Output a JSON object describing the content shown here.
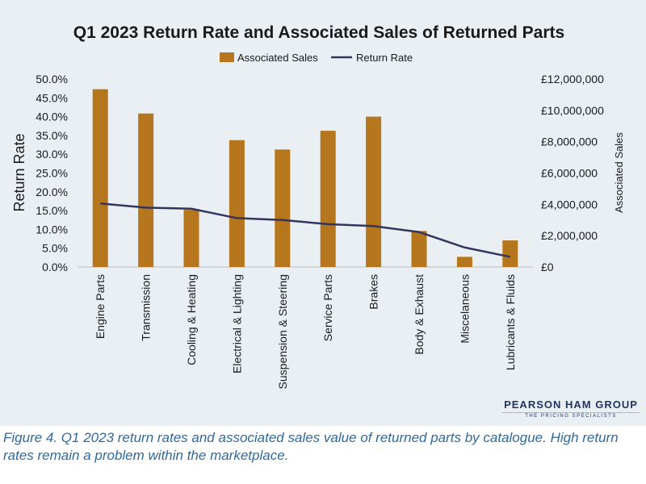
{
  "chart_data": {
    "type": "bar",
    "title": "Q1 2023 Return Rate and Associated Sales of Returned Parts",
    "categories": [
      "Engine Parts",
      "Transmission",
      "Cooling & Heating",
      "Electrical & Lighting",
      "Suspension & Steering",
      "Service Parts",
      "Brakes",
      "Body & Exhaust",
      "Miscelaneous",
      "Lubricants & Fluids"
    ],
    "series": [
      {
        "name": "Associated Sales",
        "type": "bar",
        "axis": "right",
        "color": "#b5761e",
        "values": [
          11350000,
          9800000,
          3650000,
          8100000,
          7500000,
          8700000,
          9600000,
          2300000,
          650000,
          1700000
        ]
      },
      {
        "name": "Return Rate",
        "type": "line",
        "axis": "left",
        "color": "#33365c",
        "values": [
          0.169,
          0.158,
          0.155,
          0.13,
          0.125,
          0.114,
          0.109,
          0.093,
          0.052,
          0.027
        ]
      }
    ],
    "ylabel": "Return Rate",
    "y2label": "Associated Sales",
    "ylim": [
      0,
      0.5
    ],
    "y2lim": [
      0,
      12000000
    ],
    "yticks": [
      "0.0%",
      "5.0%",
      "10.0%",
      "15.0%",
      "20.0%",
      "25.0%",
      "30.0%",
      "35.0%",
      "40.0%",
      "45.0%",
      "50.0%"
    ],
    "y2ticks": [
      "£0",
      "£2,000,000",
      "£4,000,000",
      "£6,000,000",
      "£8,000,000",
      "£10,000,000",
      "£12,000,000"
    ],
    "legend_position": "top",
    "grid": false
  },
  "logo": {
    "name": "PEARSON HAM GROUP",
    "tagline": "THE PRICING SPECIALISTS"
  },
  "caption": "Figure 4. Q1 2023 return rates and associated sales value of returned parts by catalogue. High return rates remain a problem within the marketplace."
}
